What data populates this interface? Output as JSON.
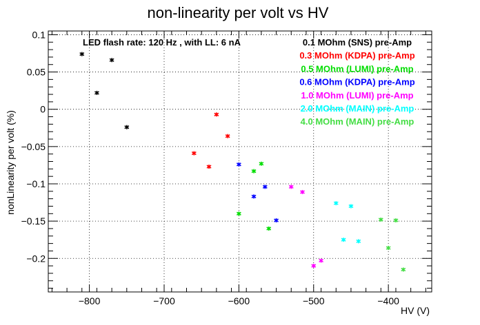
{
  "chart_data": {
    "type": "scatter",
    "title": "non-linearity per volt vs HV",
    "xlabel": "HV (V)",
    "ylabel": "nonLinearity per volt (%)",
    "xlim": [
      -855,
      -342
    ],
    "ylim": [
      -0.245,
      0.105
    ],
    "xticks": [
      -800,
      -700,
      -600,
      -500,
      -400
    ],
    "yticks": [
      0.1,
      0.05,
      0,
      -0.05,
      -0.1,
      -0.15,
      -0.2
    ],
    "ytick_labels": [
      "0.1",
      "0.05",
      "0",
      "−0.05",
      "−0.1",
      "−0.15",
      "−0.2"
    ],
    "xtick_labels": [
      "−800",
      "−700",
      "−600",
      "−500",
      "−400"
    ],
    "grid": true,
    "annotation": "LED flash rate: 120 Hz , with LL: 6 nA",
    "series": [
      {
        "name": "0.1 MOhm (SNS) pre-Amp",
        "color": "#000000",
        "points": [
          [
            -810,
            0.074
          ],
          [
            -790,
            0.022
          ],
          [
            -770,
            0.066
          ],
          [
            -750,
            -0.024
          ]
        ]
      },
      {
        "name": "0.3 MOhm (KDPA) pre-Amp",
        "color": "#ff0000",
        "points": [
          [
            -660,
            -0.059
          ],
          [
            -640,
            -0.077
          ],
          [
            -630,
            -0.007
          ],
          [
            -615,
            -0.036
          ]
        ]
      },
      {
        "name": "0.5 MOhm (LUMI) pre-Amp",
        "color": "#00dd00",
        "points": [
          [
            -600,
            -0.14
          ],
          [
            -580,
            -0.083
          ],
          [
            -570,
            -0.073
          ],
          [
            -560,
            -0.16
          ]
        ]
      },
      {
        "name": "0.6 MOhm (KDPA) pre-Amp",
        "color": "#0000ff",
        "points": [
          [
            -600,
            -0.074
          ],
          [
            -580,
            -0.117
          ],
          [
            -565,
            -0.104
          ],
          [
            -550,
            -0.149
          ]
        ]
      },
      {
        "name": "1.0 MOhm (LUMI) pre-Amp",
        "color": "#ff00ff",
        "points": [
          [
            -530,
            -0.104
          ],
          [
            -515,
            -0.111
          ],
          [
            -500,
            -0.21
          ],
          [
            -490,
            -0.203
          ]
        ]
      },
      {
        "name": "2.0 MOhm (MAIN) pre-Amp",
        "color": "#00ffff",
        "points": [
          [
            -470,
            -0.126
          ],
          [
            -460,
            -0.175
          ],
          [
            -450,
            -0.13
          ],
          [
            -440,
            -0.177
          ]
        ]
      },
      {
        "name": "4.0 MOhm (MAIN) pre-Amp",
        "color": "#44dd44",
        "points": [
          [
            -410,
            -0.148
          ],
          [
            -400,
            -0.186
          ],
          [
            -390,
            -0.149
          ],
          [
            -380,
            -0.215
          ]
        ]
      }
    ]
  }
}
